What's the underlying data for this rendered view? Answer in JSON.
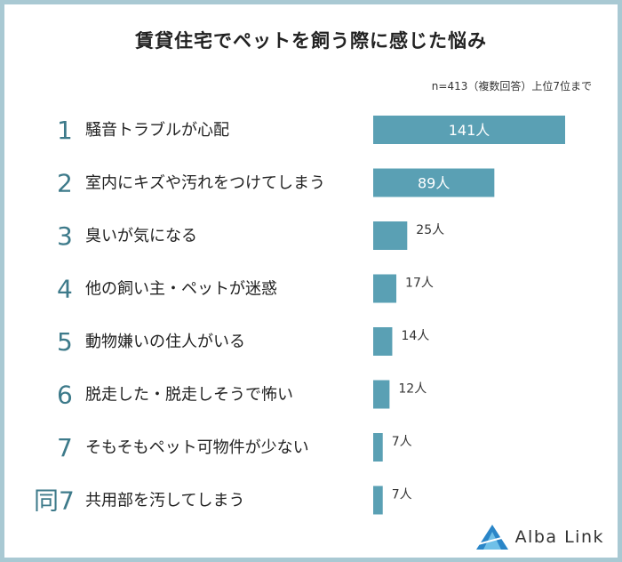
{
  "title": "賃貸住宅でペットを飼う際に感じた悩み",
  "note": "n=413（複数回答）上位7位まで",
  "brand": {
    "name": "Alba Link",
    "icon": "alba-link-logo-icon",
    "color": "#2a86c8"
  },
  "colors": {
    "bar": "#5aa0b4",
    "rank": "#3d7a8a",
    "frame": "#a9c9d3"
  },
  "chart_data": {
    "type": "bar",
    "orientation": "horizontal",
    "title": "賃貸住宅でペットを飼う際に感じた悩み",
    "ranks": [
      "1",
      "2",
      "3",
      "4",
      "5",
      "6",
      "7",
      "同7"
    ],
    "categories": [
      "騒音トラブルが心配",
      "室内にキズや汚れをつけてしまう",
      "臭いが気になる",
      "他の飼い主・ペットが迷惑",
      "動物嫌いの住人がいる",
      "脱走した・脱走しそうで怖い",
      "そもそもペット可物件が少ない",
      "共用部を汚してしまう"
    ],
    "values": [
      141,
      89,
      25,
      17,
      14,
      12,
      7,
      7
    ],
    "value_labels": [
      "141人",
      "89人",
      "25人",
      "17人",
      "14人",
      "12人",
      "7人",
      "7人"
    ],
    "grid": false,
    "legend": "none"
  }
}
